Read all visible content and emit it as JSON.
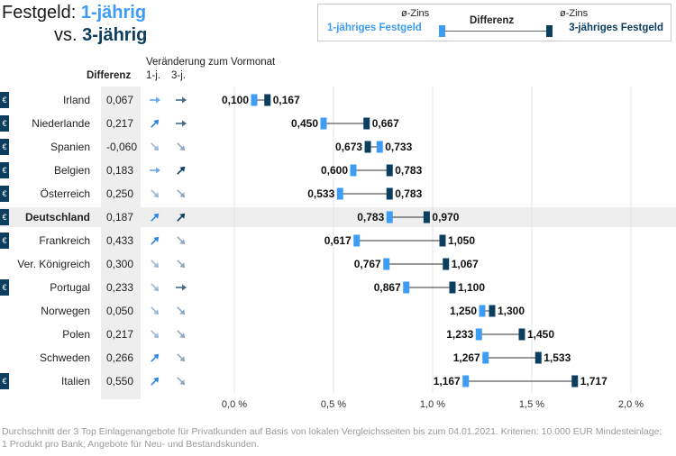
{
  "title": {
    "prefix": "Festgeld: ",
    "highlight_1": "1-jährig",
    "vs": "vs. ",
    "highlight_3": "3-jährig"
  },
  "legend": {
    "zins_left": "ø-Zins",
    "zins_right": "ø-Zins",
    "difference": "Differenz",
    "label_1": "1-jähriges Festgeld",
    "label_3": "3-jähriges Festgeld"
  },
  "headers": {
    "difference": "Differenz",
    "change": "Veränderung zum Vormonat",
    "col_1": "1-j.",
    "col_3": "3-j."
  },
  "colors": {
    "one_year": "#3f9cf5",
    "three_year": "#0c3e60",
    "arrow_up": "#2f86e0",
    "arrow_down": "#9bb8d4",
    "arrow_flat_1": "#6aa9ec",
    "arrow_flat_3": "#4a6a86",
    "grid": "#e4e4e4",
    "connector": "#5a5a5a"
  },
  "rows": [
    {
      "country": "Irland",
      "euro": "€",
      "bold": false,
      "diff": "0,067",
      "ch1": "flat",
      "ch3": "flat"
    },
    {
      "country": "Niederlande",
      "euro": "€",
      "bold": false,
      "diff": "0,217",
      "ch1": "up",
      "ch3": "flat"
    },
    {
      "country": "Spanien",
      "euro": "€",
      "bold": false,
      "diff": "-0,060",
      "ch1": "down",
      "ch3": "down"
    },
    {
      "country": "Belgien",
      "euro": "€",
      "bold": false,
      "diff": "0,183",
      "ch1": "flat",
      "ch3": "up"
    },
    {
      "country": "Österreich",
      "euro": "€",
      "bold": false,
      "diff": "0,250",
      "ch1": "down",
      "ch3": "down"
    },
    {
      "country": "Deutschland",
      "euro": "€",
      "bold": true,
      "diff": "0,187",
      "ch1": "up",
      "ch3": "up"
    },
    {
      "country": "Frankreich",
      "euro": "€",
      "bold": false,
      "diff": "0,433",
      "ch1": "up",
      "ch3": "down"
    },
    {
      "country": "Ver. Königreich",
      "euro": "",
      "bold": false,
      "diff": "0,300",
      "ch1": "down",
      "ch3": "down"
    },
    {
      "country": "Portugal",
      "euro": "€",
      "bold": false,
      "diff": "0,233",
      "ch1": "down",
      "ch3": "flat"
    },
    {
      "country": "Norwegen",
      "euro": "",
      "bold": false,
      "diff": "0,050",
      "ch1": "down",
      "ch3": "down"
    },
    {
      "country": "Polen",
      "euro": "",
      "bold": false,
      "diff": "0,217",
      "ch1": "down",
      "ch3": "down"
    },
    {
      "country": "Schweden",
      "euro": "",
      "bold": false,
      "diff": "0,266",
      "ch1": "up",
      "ch3": "down"
    },
    {
      "country": "Italien",
      "euro": "€",
      "bold": false,
      "diff": "0,550",
      "ch1": "up",
      "ch3": "down"
    }
  ],
  "chart_data": {
    "type": "dumbbell",
    "xlim": [
      0,
      2.0
    ],
    "x_ticks": [
      0,
      0.5,
      1.0,
      1.5,
      2.0
    ],
    "x_tick_labels": [
      "0,0 %",
      "0,5 %",
      "1,0 %",
      "1,5 %",
      "2,0 %"
    ],
    "grid": true,
    "categories": [
      "Irland",
      "Niederlande",
      "Spanien",
      "Belgien",
      "Österreich",
      "Deutschland",
      "Frankreich",
      "Ver. Königreich",
      "Portugal",
      "Norwegen",
      "Polen",
      "Schweden",
      "Italien"
    ],
    "series": [
      {
        "name": "1-jähriges Festgeld",
        "values": [
          0.1,
          0.45,
          0.733,
          0.6,
          0.533,
          0.783,
          0.617,
          0.767,
          0.867,
          1.25,
          1.233,
          1.267,
          1.167
        ],
        "labels": [
          "0,100",
          "0,450",
          "0,733",
          "0,600",
          "0,533",
          "0,783",
          "0,617",
          "0,767",
          "0,867",
          "1,250",
          "1,233",
          "1,267",
          "1,167"
        ]
      },
      {
        "name": "3-jähriges Festgeld",
        "values": [
          0.167,
          0.667,
          0.673,
          0.783,
          0.783,
          0.97,
          1.05,
          1.067,
          1.1,
          1.3,
          1.45,
          1.533,
          1.717
        ],
        "labels": [
          "0,167",
          "0,667",
          "0,673",
          "0,783",
          "0,783",
          "0,970",
          "1,050",
          "1,067",
          "1,100",
          "1,300",
          "1,450",
          "1,533",
          "1,717"
        ]
      }
    ]
  },
  "footnote": "Durchschnitt der 3 Top Einlagenangebote für Privatkunden auf Basis von lokalen Vergleichsseiten bis zum 04.01.2021. Kriterien: 10.000 EUR Mindesteinlage; 1 Produkt pro Bank; Angebote für Neu- und Bestandskunden."
}
